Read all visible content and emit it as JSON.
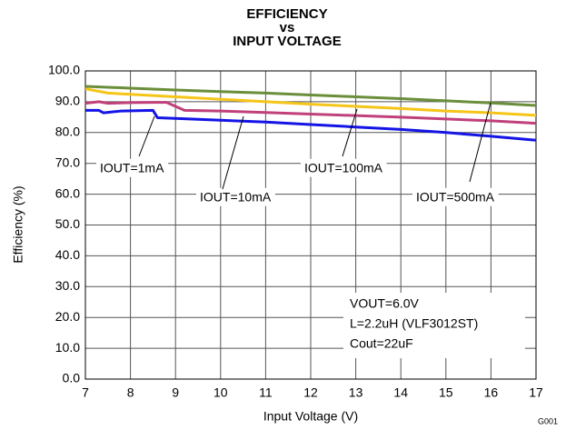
{
  "chart_data": {
    "type": "line",
    "title": [
      "EFFICIENCY",
      "vs",
      "INPUT VOLTAGE"
    ],
    "x_label": "Input Voltage (V)",
    "y_label": "Efficiency (%)",
    "xlim": [
      7,
      17
    ],
    "xticks": [
      7,
      8,
      9,
      10,
      11,
      12,
      13,
      14,
      15,
      16,
      17
    ],
    "ylim": [
      0,
      100
    ],
    "yticks": [
      {
        "value": 0,
        "label": "0.0"
      },
      {
        "value": 10,
        "label": "10.0"
      },
      {
        "value": 20,
        "label": "20.0"
      },
      {
        "value": 30,
        "label": "30.0"
      },
      {
        "value": 40,
        "label": "40.0"
      },
      {
        "value": 50,
        "label": "50.0"
      },
      {
        "value": 60,
        "label": "60.0"
      },
      {
        "value": 70,
        "label": "70.0"
      },
      {
        "value": 80,
        "label": "80.0"
      },
      {
        "value": 90,
        "label": "90.0"
      },
      {
        "value": 100,
        "label": "100.0"
      }
    ],
    "grid": true,
    "series": [
      {
        "name": "IOUT=1mA",
        "color": "#1414e6",
        "x": [
          7,
          7.3,
          7.4,
          7.8,
          8.5,
          8.6,
          9,
          10,
          11,
          12,
          13,
          14,
          15,
          16,
          17
        ],
        "values": [
          87.2,
          87.2,
          86.4,
          87,
          87.2,
          84.8,
          84.6,
          84,
          83.4,
          82.6,
          81.8,
          81,
          80,
          78.8,
          77.5
        ]
      },
      {
        "name": "IOUT=10mA",
        "color": "#c0407a",
        "x": [
          7,
          7.3,
          7.5,
          8,
          8.5,
          8.8,
          9,
          9.2,
          10,
          11,
          12,
          13,
          14,
          15,
          16,
          17
        ],
        "values": [
          89.5,
          90,
          89.5,
          89.7,
          89.8,
          89.8,
          88.5,
          87.2,
          87,
          86.5,
          86,
          85.5,
          85,
          84.4,
          83.8,
          83
        ]
      },
      {
        "name": "IOUT=100mA",
        "color": "#f5c518",
        "x": [
          7,
          7.5,
          8,
          9,
          10,
          11,
          12,
          13,
          14,
          15,
          16,
          17
        ],
        "values": [
          94.2,
          92.8,
          92.4,
          91.6,
          90.8,
          90,
          89.2,
          88.5,
          87.8,
          87,
          86.4,
          85.6
        ]
      },
      {
        "name": "IOUT=500mA",
        "color": "#6b8e3a",
        "x": [
          7,
          8,
          9,
          10,
          11,
          12,
          13,
          14,
          15,
          16,
          17
        ],
        "values": [
          95,
          94.4,
          93.8,
          93.3,
          92.8,
          92.2,
          91.6,
          91,
          90.3,
          89.6,
          88.8
        ]
      }
    ],
    "conditions": [
      "VOUT=6.0V",
      "L=2.2uH (VLF3012ST)",
      "Cout=22uF"
    ],
    "figure_id": "G001"
  }
}
